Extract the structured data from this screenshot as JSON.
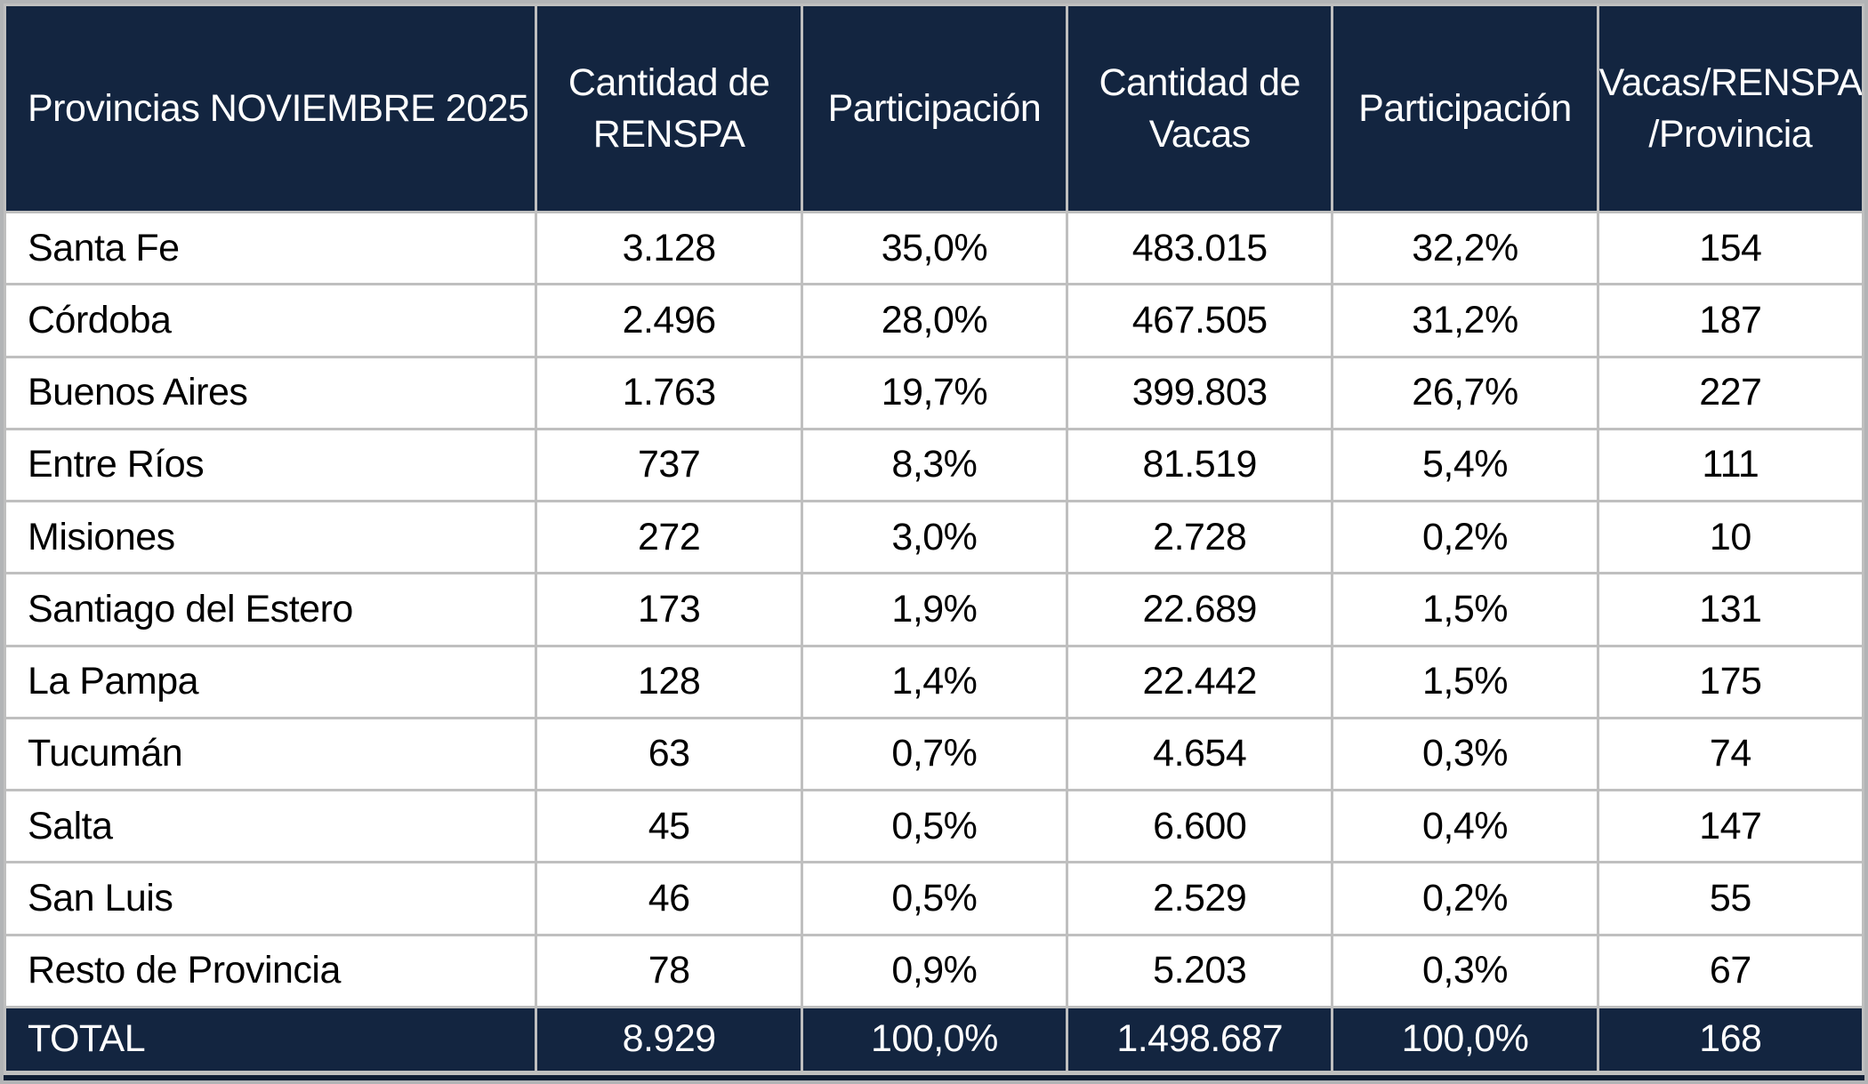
{
  "colors": {
    "header_bg": "#132540",
    "header_text": "#ffffff",
    "body_text": "#000000",
    "grid": "#bfbfbf",
    "frame": "#b2b4b6",
    "bottom_bar": "#0f1e35",
    "row_bg": "#ffffff"
  },
  "chart_data": {
    "type": "table",
    "title": "Provincias NOVIEMBRE 2025",
    "columns": [
      "Provincias NOVIEMBRE 2025",
      "Cantidad de\nRENSPA",
      "Participación",
      "Cantidad de\nVacas",
      "Participación",
      "Vacas/RENSPA\n/Provincia"
    ],
    "rows": [
      [
        "Santa Fe",
        "3.128",
        "35,0%",
        "483.015",
        "32,2%",
        "154"
      ],
      [
        "Córdoba",
        "2.496",
        "28,0%",
        "467.505",
        "31,2%",
        "187"
      ],
      [
        "Buenos Aires",
        "1.763",
        "19,7%",
        "399.803",
        "26,7%",
        "227"
      ],
      [
        "Entre Ríos",
        "737",
        "8,3%",
        "81.519",
        "5,4%",
        "111"
      ],
      [
        "Misiones",
        "272",
        "3,0%",
        "2.728",
        "0,2%",
        "10"
      ],
      [
        "Santiago del Estero",
        "173",
        "1,9%",
        "22.689",
        "1,5%",
        "131"
      ],
      [
        "La Pampa",
        "128",
        "1,4%",
        "22.442",
        "1,5%",
        "175"
      ],
      [
        "Tucumán",
        "63",
        "0,7%",
        "4.654",
        "0,3%",
        "74"
      ],
      [
        "Salta",
        "45",
        "0,5%",
        "6.600",
        "0,4%",
        "147"
      ],
      [
        "San Luis",
        "46",
        "0,5%",
        "2.529",
        "0,2%",
        "55"
      ],
      [
        "Resto de Provincia",
        "78",
        "0,9%",
        "5.203",
        "0,3%",
        "67"
      ]
    ],
    "total_row": [
      "TOTAL",
      "8.929",
      "100,0%",
      "1.498.687",
      "100,0%",
      "168"
    ]
  }
}
